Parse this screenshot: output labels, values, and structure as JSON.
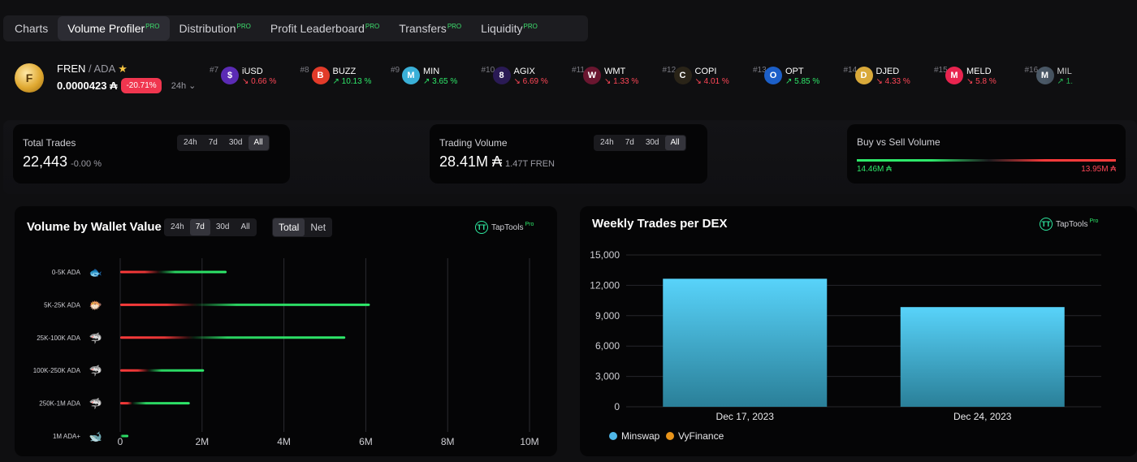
{
  "tabs": [
    {
      "label": "Charts",
      "pro": ""
    },
    {
      "label": "Volume Profiler",
      "pro": "PRO"
    },
    {
      "label": "Distribution",
      "pro": "PRO"
    },
    {
      "label": "Profit Leaderboard",
      "pro": "PRO"
    },
    {
      "label": "Transfers",
      "pro": "PRO"
    },
    {
      "label": "Liquidity",
      "pro": "PRO"
    }
  ],
  "token": {
    "logo_text": "F",
    "name": "FREN",
    "quote": " / ADA",
    "price": "0.0000423 ₳",
    "change": "-20.71%",
    "timeframe": "24h ⌄"
  },
  "ticker": [
    {
      "rank": "#7",
      "name": "iUSD",
      "change": "↘ 0.66 %",
      "dir": "down",
      "color": "#5b2bb5",
      "glyph": "$"
    },
    {
      "rank": "#8",
      "name": "BUZZ",
      "change": "↗ 10.13 %",
      "dir": "up",
      "color": "#e23b2a",
      "glyph": "B"
    },
    {
      "rank": "#9",
      "name": "MIN",
      "change": "↗ 3.65 %",
      "dir": "up",
      "color": "#3ab0d8",
      "glyph": "M"
    },
    {
      "rank": "#10",
      "name": "AGIX",
      "change": "↘ 6.69 %",
      "dir": "down",
      "color": "#2a1a55",
      "glyph": "8"
    },
    {
      "rank": "#11",
      "name": "WMT",
      "change": "↘ 1.33 %",
      "dir": "down",
      "color": "#6a1630",
      "glyph": "W"
    },
    {
      "rank": "#12",
      "name": "COPI",
      "change": "↘ 4.01 %",
      "dir": "down",
      "color": "#2a2418",
      "glyph": "C"
    },
    {
      "rank": "#13",
      "name": "OPT",
      "change": "↗ 5.85 %",
      "dir": "up",
      "color": "#1c5fc8",
      "glyph": "O"
    },
    {
      "rank": "#14",
      "name": "DJED",
      "change": "↘ 4.33 %",
      "dir": "down",
      "color": "#d9a93a",
      "glyph": "D"
    },
    {
      "rank": "#15",
      "name": "MELD",
      "change": "↘ 5.8 %",
      "dir": "down",
      "color": "#e8244f",
      "glyph": "M"
    },
    {
      "rank": "#16",
      "name": "MIL",
      "change": "↗ 1.",
      "dir": "up",
      "color": "#4a5866",
      "glyph": "M"
    }
  ],
  "stats": {
    "total_trades": {
      "title": "Total Trades",
      "value": "22,443",
      "sub": "-0.00 %",
      "periods": [
        "24h",
        "7d",
        "30d",
        "All"
      ],
      "active": "All"
    },
    "trading_volume": {
      "title": "Trading Volume",
      "value": "28.41M ₳",
      "sub": "1.47T FREN",
      "periods": [
        "24h",
        "7d",
        "30d",
        "All"
      ],
      "active": "All"
    },
    "buy_sell": {
      "title": "Buy vs Sell Volume",
      "buy": "14.46M ₳",
      "sell": "13.95M ₳",
      "buy_share": 0.509
    }
  },
  "volume_by_wallet": {
    "title": "Volume by Wallet Value",
    "periods": [
      "24h",
      "7d",
      "30d",
      "All"
    ],
    "active_period": "7d",
    "modes": [
      "Total",
      "Net"
    ],
    "active_mode": "Total",
    "brand": "TapTools",
    "brand_pro": "Pro",
    "chart_data": {
      "type": "bar",
      "orientation": "horizontal",
      "categories": [
        "0-5K ADA",
        "5K-25K ADA",
        "25K-100K ADA",
        "100K-250K ADA",
        "250K-1M ADA",
        "1M ADA+"
      ],
      "series": [
        {
          "values": [
            1.0,
            1.9,
            1.8,
            0.72,
            0.3,
            0.0
          ],
          "color": "#ff3b3b"
        },
        {
          "values": [
            2.6,
            6.1,
            5.5,
            2.05,
            1.7,
            0.2
          ],
          "color": "#2ee86a"
        }
      ],
      "xlim": [
        0,
        10
      ],
      "x_ticks": [
        "0",
        "2M",
        "4M",
        "6M",
        "8M",
        "10M"
      ],
      "grid": true
    }
  },
  "weekly_trades": {
    "title": "Weekly Trades per DEX",
    "brand": "TapTools",
    "brand_pro": "Pro",
    "legend": [
      {
        "name": "Minswap",
        "color": "#4fb7e8"
      },
      {
        "name": "VyFinance",
        "color": "#e8941a"
      }
    ],
    "chart_data": {
      "type": "bar",
      "categories": [
        "Dec 17, 2023",
        "Dec 24, 2023"
      ],
      "series": [
        {
          "name": "Minswap",
          "values": [
            12650,
            9850
          ]
        }
      ],
      "ylim": [
        0,
        15000
      ],
      "y_ticks": [
        "0",
        "3,000",
        "6,000",
        "9,000",
        "12,000",
        "15,000"
      ],
      "grid": true
    }
  }
}
